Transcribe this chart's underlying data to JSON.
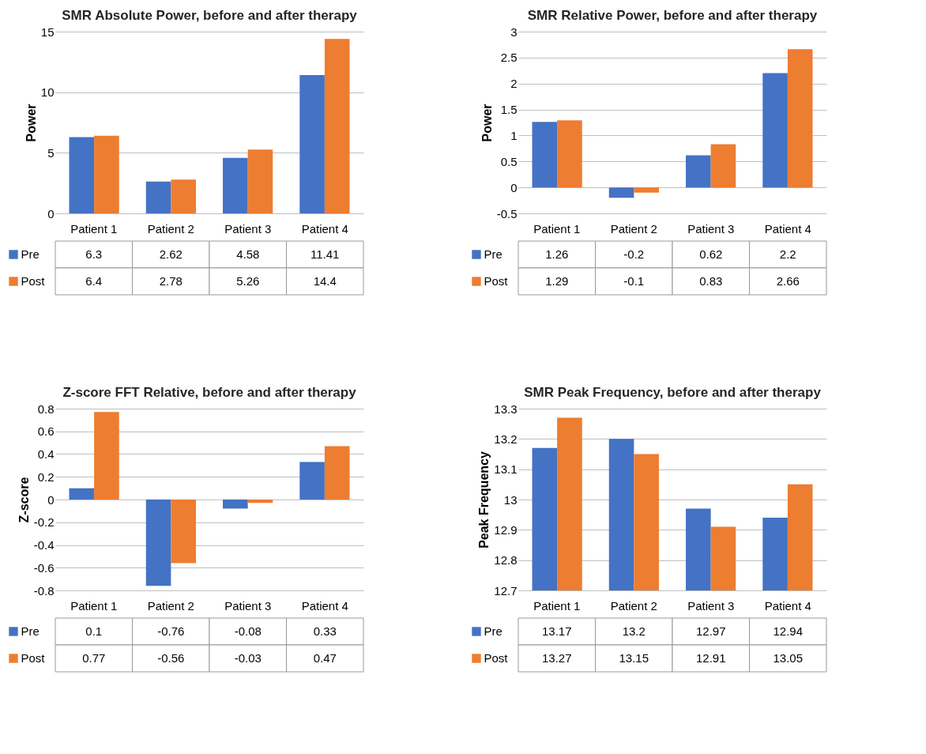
{
  "chart_data": [
    {
      "type": "bar",
      "title": "SMR Absolute Power, before and after therapy",
      "ylabel": "Power",
      "categories": [
        "Patient 1",
        "Patient 2",
        "Patient 3",
        "Patient 4"
      ],
      "series": [
        {
          "name": "Pre",
          "color": "#4472c4",
          "values": [
            6.3,
            2.62,
            4.58,
            11.41
          ]
        },
        {
          "name": "Post",
          "color": "#ed7d31",
          "values": [
            6.4,
            2.78,
            5.26,
            14.4
          ]
        }
      ],
      "ylim": [
        0,
        15
      ],
      "yticks": [
        0,
        5,
        10,
        15
      ],
      "grid": "y",
      "legend": "bottom left",
      "data_labels": true
    },
    {
      "type": "bar",
      "title": "SMR Relative Power, before and after therapy",
      "ylabel": "Power",
      "categories": [
        "Patient 1",
        "Patient 2",
        "Patient 3",
        "Patient 4"
      ],
      "series": [
        {
          "name": "Pre",
          "color": "#4472c4",
          "values": [
            1.26,
            -0.2,
            0.62,
            2.2
          ]
        },
        {
          "name": "Post",
          "color": "#ed7d31",
          "values": [
            1.29,
            -0.1,
            0.83,
            2.66
          ]
        }
      ],
      "ylim": [
        -0.5,
        3
      ],
      "yticks": [
        -0.5,
        0,
        0.5,
        1,
        1.5,
        2,
        2.5,
        3
      ],
      "grid": "y",
      "legend": "bottom left",
      "data_labels": true
    },
    {
      "type": "bar",
      "title": "Z-score FFT Relative, before and after therapy",
      "ylabel": "Z-score",
      "categories": [
        "Patient 1",
        "Patient 2",
        "Patient 3",
        "Patient 4"
      ],
      "series": [
        {
          "name": "Pre",
          "color": "#4472c4",
          "values": [
            0.1,
            -0.76,
            -0.08,
            0.33
          ]
        },
        {
          "name": "Post",
          "color": "#ed7d31",
          "values": [
            0.77,
            -0.56,
            -0.03,
            0.47
          ]
        }
      ],
      "ylim": [
        -0.8,
        0.8
      ],
      "yticks": [
        -0.8,
        -0.6,
        -0.4,
        -0.2,
        0,
        0.2,
        0.4,
        0.6,
        0.8
      ],
      "grid": "y",
      "legend": "bottom left",
      "data_labels": true
    },
    {
      "type": "bar",
      "title": "SMR Peak Frequency, before and after therapy",
      "ylabel": "Peak Frequency",
      "categories": [
        "Patient 1",
        "Patient 2",
        "Patient 3",
        "Patient 4"
      ],
      "series": [
        {
          "name": "Pre",
          "color": "#4472c4",
          "values": [
            13.17,
            13.2,
            12.97,
            12.94
          ]
        },
        {
          "name": "Post",
          "color": "#ed7d31",
          "values": [
            13.27,
            13.15,
            12.91,
            13.05
          ]
        }
      ],
      "ylim": [
        12.7,
        13.3
      ],
      "yticks": [
        12.7,
        12.8,
        12.9,
        13,
        13.1,
        13.2,
        13.3
      ],
      "grid": "y",
      "legend": "bottom left",
      "data_labels": true
    }
  ]
}
